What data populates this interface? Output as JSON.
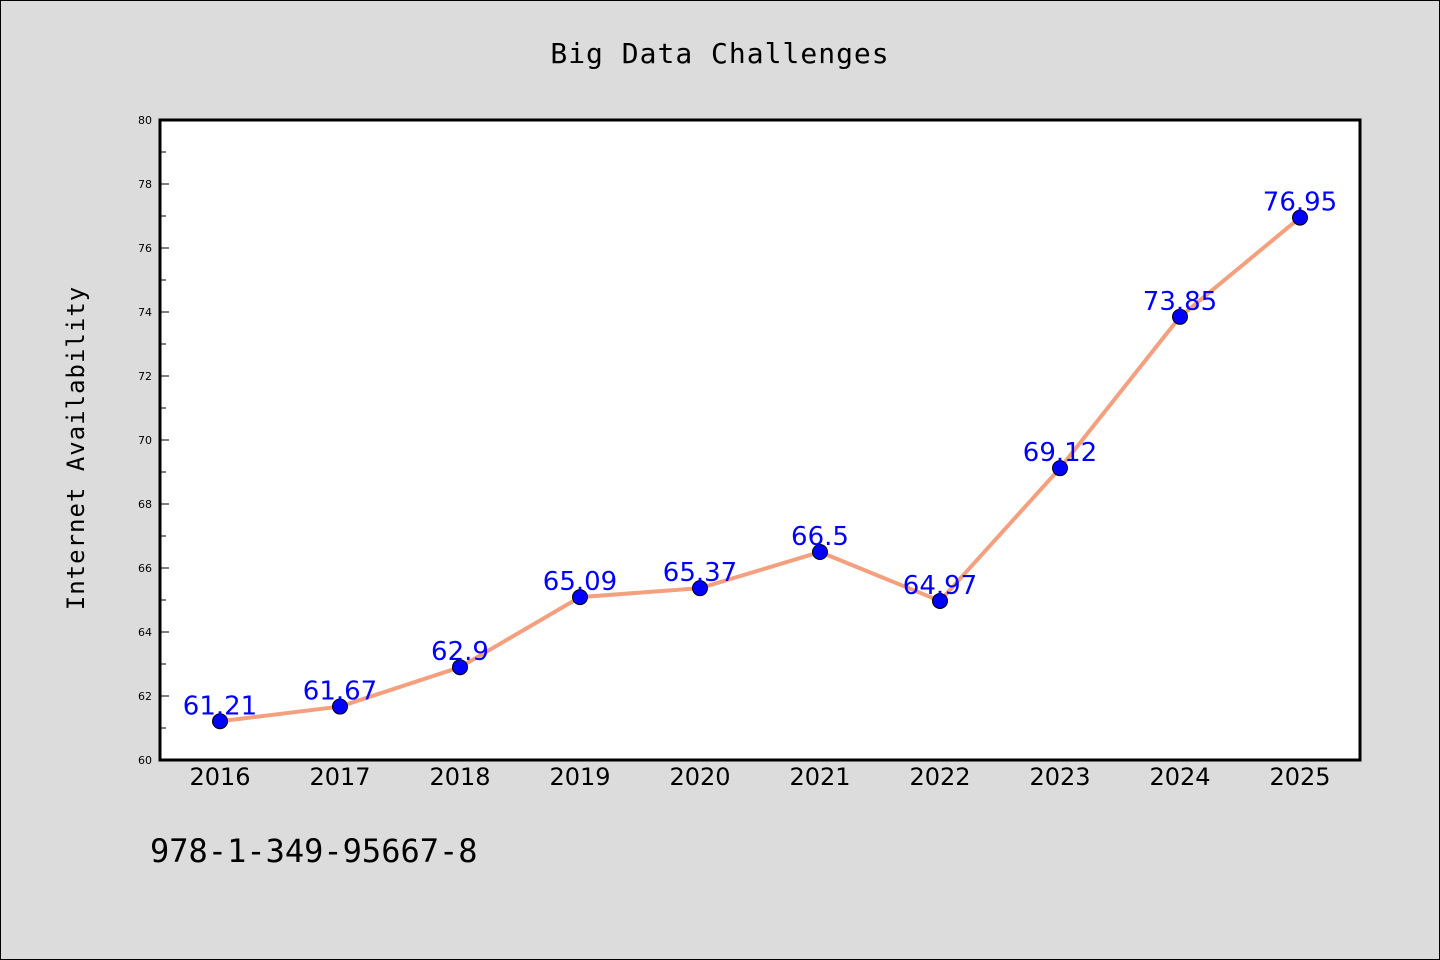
{
  "footer_code": "978-1-349-95667-8",
  "chart_data": {
    "type": "line",
    "title": "Big Data Challenges",
    "xlabel": "",
    "ylabel": "Internet Availability",
    "categories": [
      "2016",
      "2017",
      "2018",
      "2019",
      "2020",
      "2021",
      "2022",
      "2023",
      "2024",
      "2025"
    ],
    "values": [
      61.21,
      61.67,
      62.9,
      65.09,
      65.37,
      66.5,
      64.97,
      69.12,
      73.85,
      76.95
    ],
    "data_labels": [
      "61.21",
      "61.67",
      "62.9",
      "65.09",
      "65.37",
      "66.5",
      "64.97",
      "69.12",
      "73.85",
      "76.95"
    ],
    "ylim": [
      60,
      80
    ],
    "yticks": [
      60,
      62,
      64,
      66,
      68,
      70,
      72,
      74,
      76,
      78,
      80
    ],
    "grid": false,
    "legend": "none",
    "colors": {
      "line": "#f4a07f",
      "marker": "#0000ff",
      "label": "#0000ff",
      "background": "#dcdcdc",
      "plot_area": "#ffffff"
    }
  }
}
